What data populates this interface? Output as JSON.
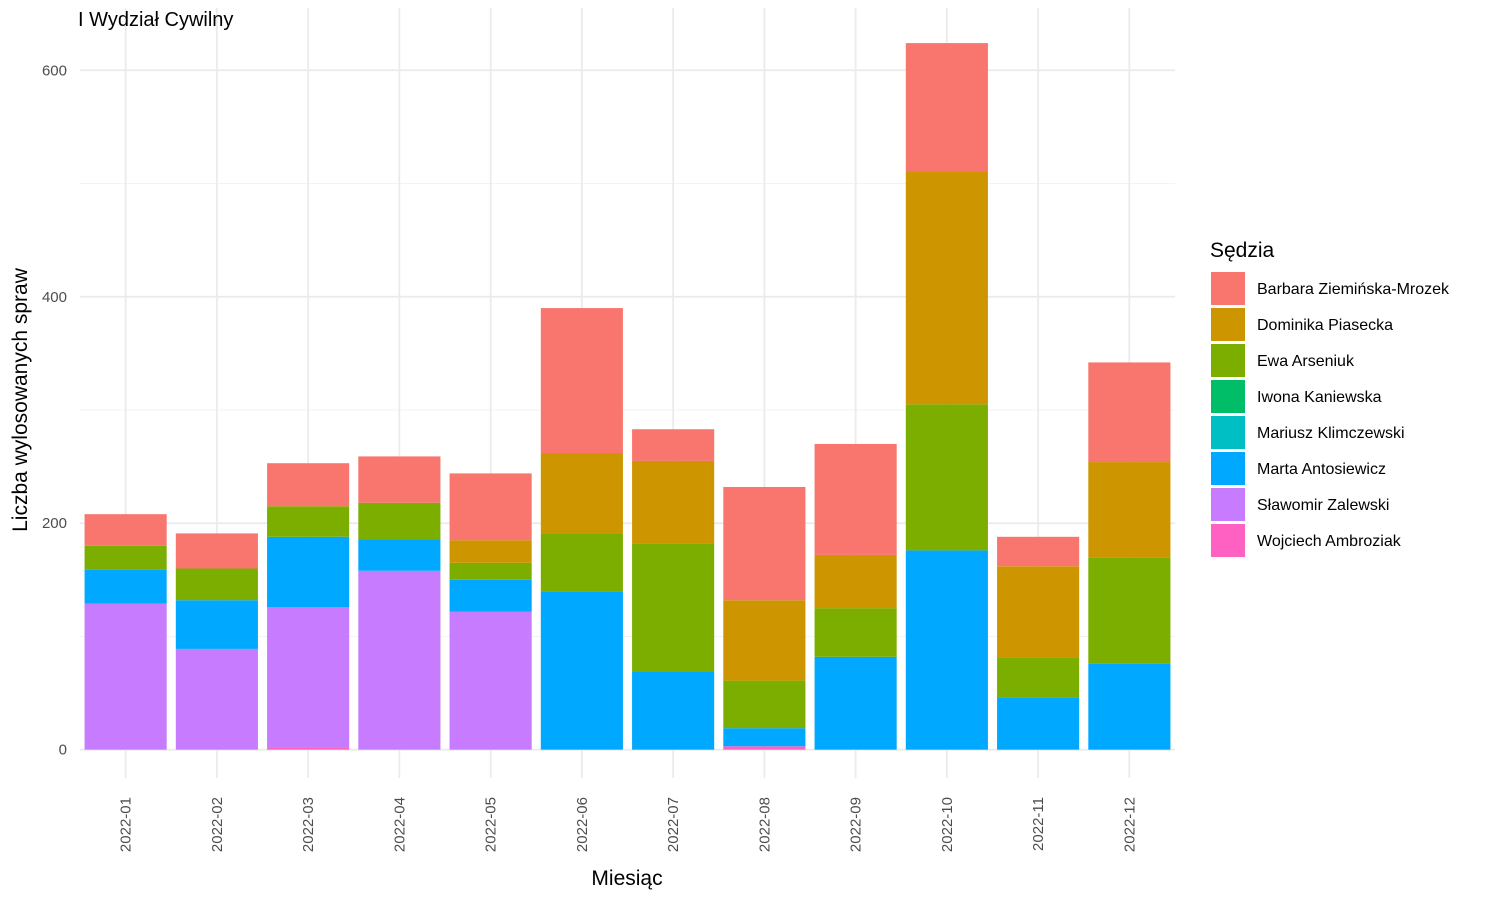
{
  "chart_data": {
    "type": "bar",
    "stacked": true,
    "title": "I Wydział Cywilny",
    "xlabel": "Miesiąc",
    "ylabel": "Liczba wylosowanych spraw",
    "ylim": [
      -25,
      655
    ],
    "yticks": [
      0,
      200,
      400,
      600
    ],
    "grid": true,
    "legend_title": "Sędzia",
    "legend_position": "right",
    "categories": [
      "2022-01",
      "2022-02",
      "2022-03",
      "2022-04",
      "2022-05",
      "2022-06",
      "2022-07",
      "2022-08",
      "2022-09",
      "2022-10",
      "2022-11",
      "2022-12"
    ],
    "series": [
      {
        "name": "Wojciech Ambroziak",
        "color": "#FF61C3",
        "values": [
          0,
          0,
          2,
          0,
          0,
          0,
          0,
          3,
          0,
          0,
          0,
          0
        ]
      },
      {
        "name": "Sławomir Zalewski",
        "color": "#C77CFF",
        "values": [
          129,
          89,
          124,
          158,
          122,
          0,
          0,
          0,
          0,
          0,
          0,
          0
        ]
      },
      {
        "name": "Marta Antosiewicz",
        "color": "#00A9FF",
        "values": [
          30,
          43,
          62,
          28,
          28,
          140,
          69,
          16,
          82,
          176,
          46,
          76
        ]
      },
      {
        "name": "Mariusz Klimczewski",
        "color": "#00BFC4",
        "values": [
          0,
          0,
          0,
          0,
          0,
          0,
          0,
          0,
          0,
          0,
          0,
          0
        ]
      },
      {
        "name": "Iwona Kaniewska",
        "color": "#00BE67",
        "values": [
          0,
          0,
          0,
          0,
          0,
          0,
          0,
          0,
          0,
          0,
          0,
          0
        ]
      },
      {
        "name": "Ewa Arseniuk",
        "color": "#7CAE00",
        "values": [
          21,
          28,
          27,
          32,
          15,
          51,
          113,
          42,
          43,
          129,
          35,
          94
        ]
      },
      {
        "name": "Dominika Piasecka",
        "color": "#CD9600",
        "values": [
          0,
          0,
          0,
          0,
          20,
          71,
          73,
          71,
          47,
          206,
          81,
          84
        ]
      },
      {
        "name": "Barbara Ziemińska-Mrozek",
        "color": "#F8766D",
        "values": [
          28,
          31,
          38,
          41,
          59,
          128,
          28,
          100,
          98,
          113,
          26,
          88
        ]
      }
    ],
    "legend_order": [
      "Barbara Ziemińska-Mrozek",
      "Dominika Piasecka",
      "Ewa Arseniuk",
      "Iwona Kaniewska",
      "Mariusz Klimczewski",
      "Marta Antosiewicz",
      "Sławomir Zalewski",
      "Wojciech Ambroziak"
    ]
  }
}
